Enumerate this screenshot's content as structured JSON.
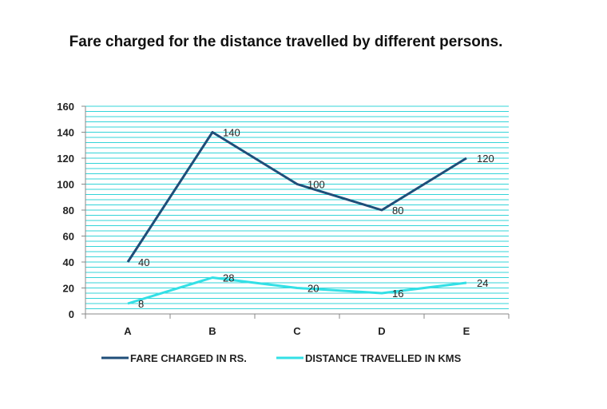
{
  "chart_data": {
    "type": "line",
    "title": "Fare charged for the distance travelled by different persons.",
    "categories": [
      "A",
      "B",
      "C",
      "D",
      "E"
    ],
    "ylim": [
      0,
      160
    ],
    "yticks": [
      0,
      20,
      40,
      60,
      80,
      100,
      120,
      140,
      160
    ],
    "grid": true,
    "legend_position": "bottom",
    "series": [
      {
        "name": "FARE CHARGED IN RS.",
        "values": [
          40,
          140,
          100,
          80,
          120
        ],
        "color": "#1f4e79"
      },
      {
        "name": "DISTANCE TRAVELLED IN KMS",
        "values": [
          8,
          28,
          20,
          16,
          24
        ],
        "color": "#33e0e6"
      }
    ]
  },
  "colors": {
    "grid": "#33d4d8",
    "axis": "#888888"
  }
}
